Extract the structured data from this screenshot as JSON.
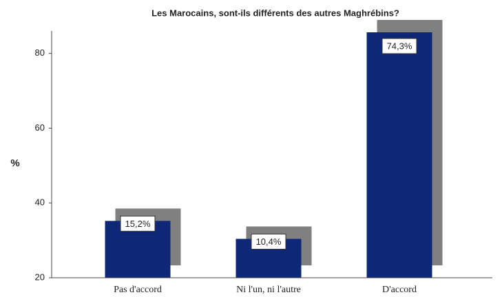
{
  "chart_data": {
    "type": "bar",
    "title": "Les Marocains, sont-ils différents des autres Maghrébins?",
    "y_label": "%",
    "categories": [
      "Pas d'accord",
      "Ni l'un, ni l'autre",
      "D'accord"
    ],
    "values": [
      15.2,
      10.4,
      74.3
    ],
    "value_labels": [
      "15,2%",
      "10,4%",
      "74,3%"
    ],
    "color": "#0f2777",
    "shadow_color": "#808080",
    "ylim": [
      20,
      86
    ],
    "yticks": [
      20,
      40,
      60,
      80
    ]
  }
}
